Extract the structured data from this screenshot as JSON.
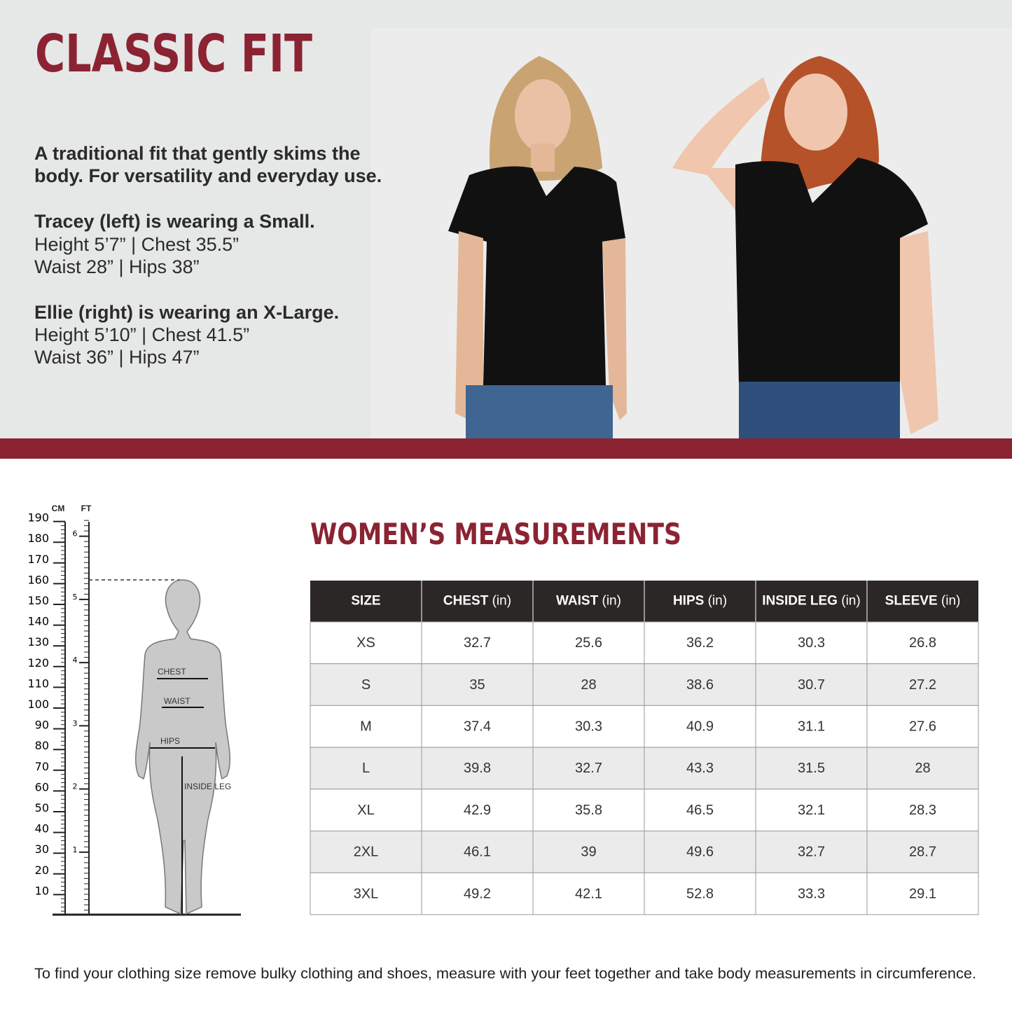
{
  "header": {
    "title": "CLASSIC FIT"
  },
  "intro": [
    "A traditional fit that gently skims the",
    "body. For versatility and everyday use."
  ],
  "models": [
    {
      "caption": "Tracey (left) is wearing a Small.",
      "lines": [
        "Height 5’7” | Chest 35.5”",
        "Waist 28” | Hips 38”"
      ]
    },
    {
      "caption": "Ellie (right) is wearing an X-Large.",
      "lines": [
        "Height 5’10” | Chest 41.5”",
        "Waist 36” | Hips 47”"
      ]
    }
  ],
  "ruler": {
    "cm_label": "CM",
    "ft_label": "FT",
    "cm_ticks": [
      190,
      180,
      170,
      160,
      150,
      140,
      130,
      120,
      110,
      100,
      90,
      80,
      70,
      60,
      50,
      40,
      30,
      20,
      10
    ],
    "ft_ticks": [
      6,
      5,
      4,
      3,
      2,
      1
    ],
    "body_labels": [
      "CHEST",
      "WAIST",
      "HIPS",
      "INSIDE LEG"
    ]
  },
  "table": {
    "title": "WOMEN’S MEASUREMENTS",
    "headers": [
      {
        "name": "SIZE"
      },
      {
        "name": "CHEST",
        "unit": "(in)"
      },
      {
        "name": "WAIST",
        "unit": "(in)"
      },
      {
        "name": "HIPS",
        "unit": "(in)"
      },
      {
        "name": "INSIDE LEG",
        "unit": "(in)"
      },
      {
        "name": "SLEEVE",
        "unit": "(in)"
      }
    ],
    "rows": [
      [
        "XS",
        32.7,
        25.6,
        36.2,
        30.3,
        26.8
      ],
      [
        "S",
        35,
        28,
        38.6,
        30.7,
        27.2
      ],
      [
        "M",
        37.4,
        30.3,
        40.9,
        31.1,
        27.6
      ],
      [
        "L",
        39.8,
        32.7,
        43.3,
        31.5,
        28
      ],
      [
        "XL",
        42.9,
        35.8,
        46.5,
        32.1,
        28.3
      ],
      [
        "2XL",
        46.1,
        39,
        49.6,
        32.7,
        28.7
      ],
      [
        "3XL",
        49.2,
        42.1,
        52.8,
        33.3,
        29.1
      ]
    ]
  },
  "footer": {
    "note": "To find your clothing size remove bulky clothing and shoes, measure with your feet together and take body measurements in circumference."
  }
}
